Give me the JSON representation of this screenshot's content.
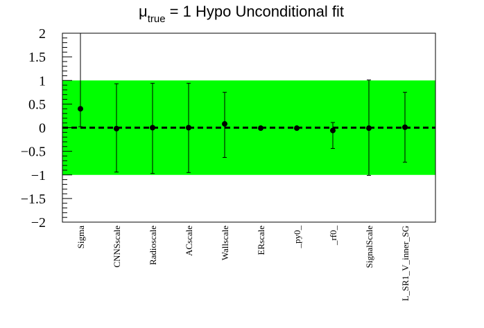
{
  "chart_data": {
    "type": "scatter",
    "title": {
      "prefix": "μ",
      "subscript": "true",
      "suffix": " = 1 Hypo Unconditional fit"
    },
    "xlabel": "",
    "ylabel": "",
    "ylim": [
      -2,
      2
    ],
    "yticks": [
      {
        "value": 2,
        "label": "2"
      },
      {
        "value": 1.5,
        "label": "1.5"
      },
      {
        "value": 1,
        "label": "1"
      },
      {
        "value": 0.5,
        "label": "0.5"
      },
      {
        "value": 0,
        "label": "0"
      },
      {
        "value": -0.5,
        "label": "−0.5"
      },
      {
        "value": -1,
        "label": "−1"
      },
      {
        "value": -1.5,
        "label": "−1.5"
      },
      {
        "value": -2,
        "label": "−2"
      }
    ],
    "band": {
      "low": -1,
      "high": 1,
      "color": "#00ff00"
    },
    "reference_line": {
      "value": 0,
      "style": "dashed"
    },
    "categories": [
      "Sigma",
      "CNNSscale",
      "Radioscale",
      "ACscale",
      "Wallscale",
      "ERscale",
      "_py0_",
      "_rf0_",
      "SignalScale",
      "L_SR1_V_inner_SG"
    ],
    "values": [
      0.4,
      -0.02,
      0.0,
      0.0,
      0.08,
      -0.01,
      -0.01,
      -0.06,
      -0.01,
      0.01
    ],
    "errors_low": [
      0.38,
      0.92,
      0.97,
      0.95,
      0.71,
      0.0,
      0.0,
      0.38,
      1.0,
      0.74
    ],
    "errors_high": [
      1.6,
      0.95,
      0.94,
      0.94,
      0.67,
      0.0,
      0.0,
      0.17,
      1.02,
      0.74
    ],
    "marker_color": "#000000"
  }
}
